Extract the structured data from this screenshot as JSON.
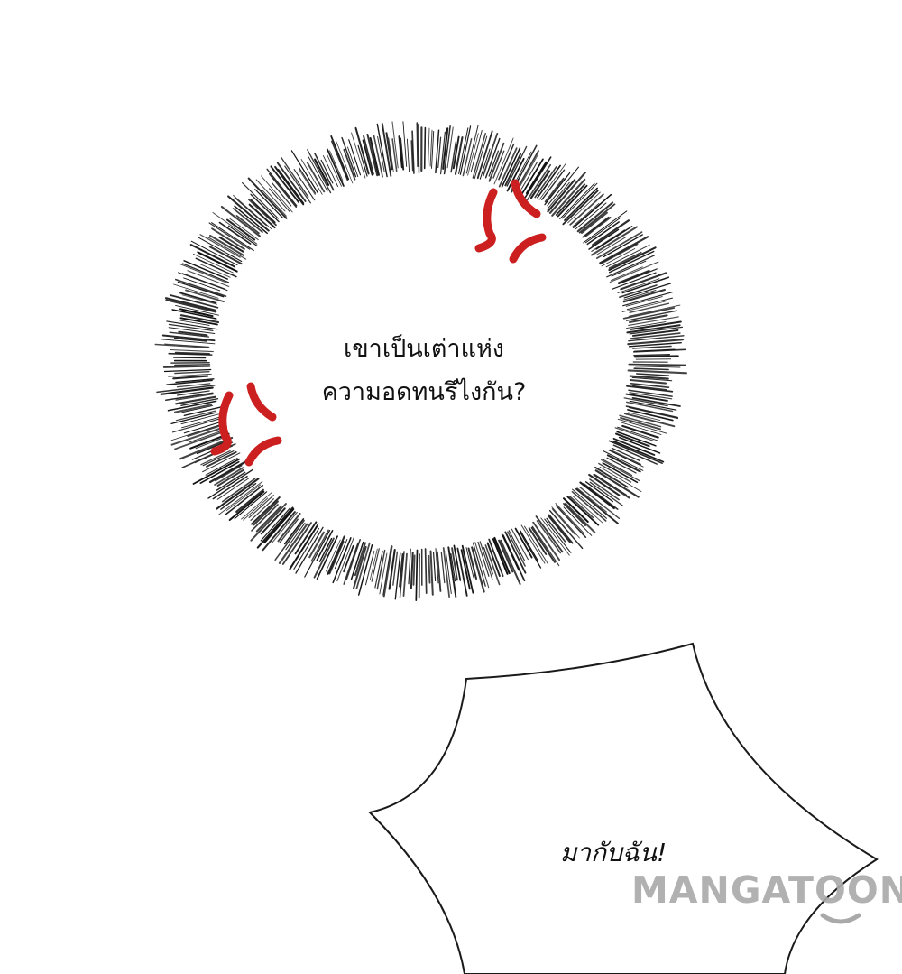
{
  "thought_bubble": {
    "lines": [
      "เขาเป็นเต่าแห่ง",
      "ความอดทนรึไงกัน?"
    ]
  },
  "shout_bubble": {
    "text": "มากับฉัน!"
  },
  "watermark": {
    "text": "MANGATOON"
  },
  "icons": {
    "anger_mark": "anger-vein-icon",
    "smile": "smile-icon"
  },
  "colors": {
    "background": "#ffffff",
    "ink": "#111111",
    "anger_red": "#cc1f1f",
    "watermark_gray": "#a9a9a9"
  }
}
